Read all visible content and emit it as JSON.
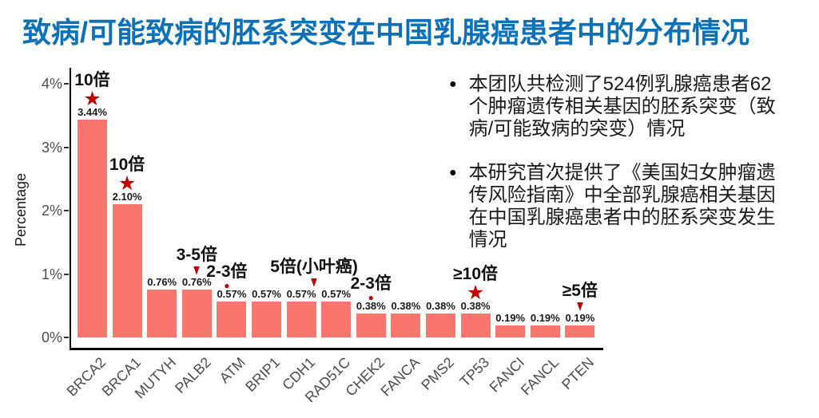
{
  "title": {
    "text": "致病/可能致病的胚系突变在中国乳腺癌患者中的分布情况",
    "color": "#0D71B8"
  },
  "bullets": [
    {
      "lines": [
        "本团队共检测了524例乳腺癌患者62",
        "个肿瘤遗传相关基因的胚系突变（致",
        "病/可能致病的突变）情况"
      ]
    },
    {
      "lines": [
        "本研究首次提供了《美国妇女肿瘤遗",
        "传风险指南》中全部乳腺癌相关基因",
        "在中国乳腺癌患者中的胚系突变发生",
        "情况"
      ]
    }
  ],
  "chart_data": {
    "type": "bar",
    "title": "",
    "xlabel": "",
    "ylabel": "Percentage",
    "ylim": [
      0,
      4
    ],
    "yticks": [
      "0%",
      "1%",
      "2%",
      "3%",
      "4%"
    ],
    "grid": false,
    "legend": false,
    "categories": [
      "BRCA2",
      "BRCA1",
      "MUTYH",
      "PALB2",
      "ATM",
      "BRIP1",
      "CDH1",
      "RAD51C",
      "CHEK2",
      "FANCA",
      "PMS2",
      "TP53",
      "FANCI",
      "FANCL",
      "PTEN"
    ],
    "values": [
      3.44,
      2.1,
      0.76,
      0.76,
      0.57,
      0.57,
      0.57,
      0.57,
      0.38,
      0.38,
      0.38,
      0.38,
      0.19,
      0.19,
      0.19
    ],
    "value_labels": [
      "3.44%",
      "2.10%",
      "0.76%",
      "0.76%",
      "0.57%",
      "0.57%",
      "0.57%",
      "0.57%",
      "0.38%",
      "0.38%",
      "0.38%",
      "0.38%",
      "0.19%",
      "0.19%",
      "0.19%"
    ],
    "annotations": [
      {
        "category": "BRCA2",
        "label": "10倍",
        "marker": "star"
      },
      {
        "category": "BRCA1",
        "label": "10倍",
        "marker": "star"
      },
      {
        "category": "PALB2",
        "label": "3-5倍",
        "marker": "triangle"
      },
      {
        "category": "ATM",
        "label": "2-3倍",
        "marker": "dot"
      },
      {
        "category": "CDH1",
        "label": "5倍(小叶癌)",
        "marker": "triangle"
      },
      {
        "category": "CHEK2",
        "label": "2-3倍",
        "marker": "dot"
      },
      {
        "category": "TP53",
        "label": "≥10倍",
        "marker": "star"
      },
      {
        "category": "PTEN",
        "label": "≥5倍",
        "marker": "triangle"
      }
    ],
    "colors": {
      "bar": "#F8766D",
      "marker": "#C00000",
      "axis_text": "#4D4D4D",
      "axis_line": "#000000",
      "value_text": "#1A1A1A",
      "annotation_text": "#111111"
    }
  }
}
